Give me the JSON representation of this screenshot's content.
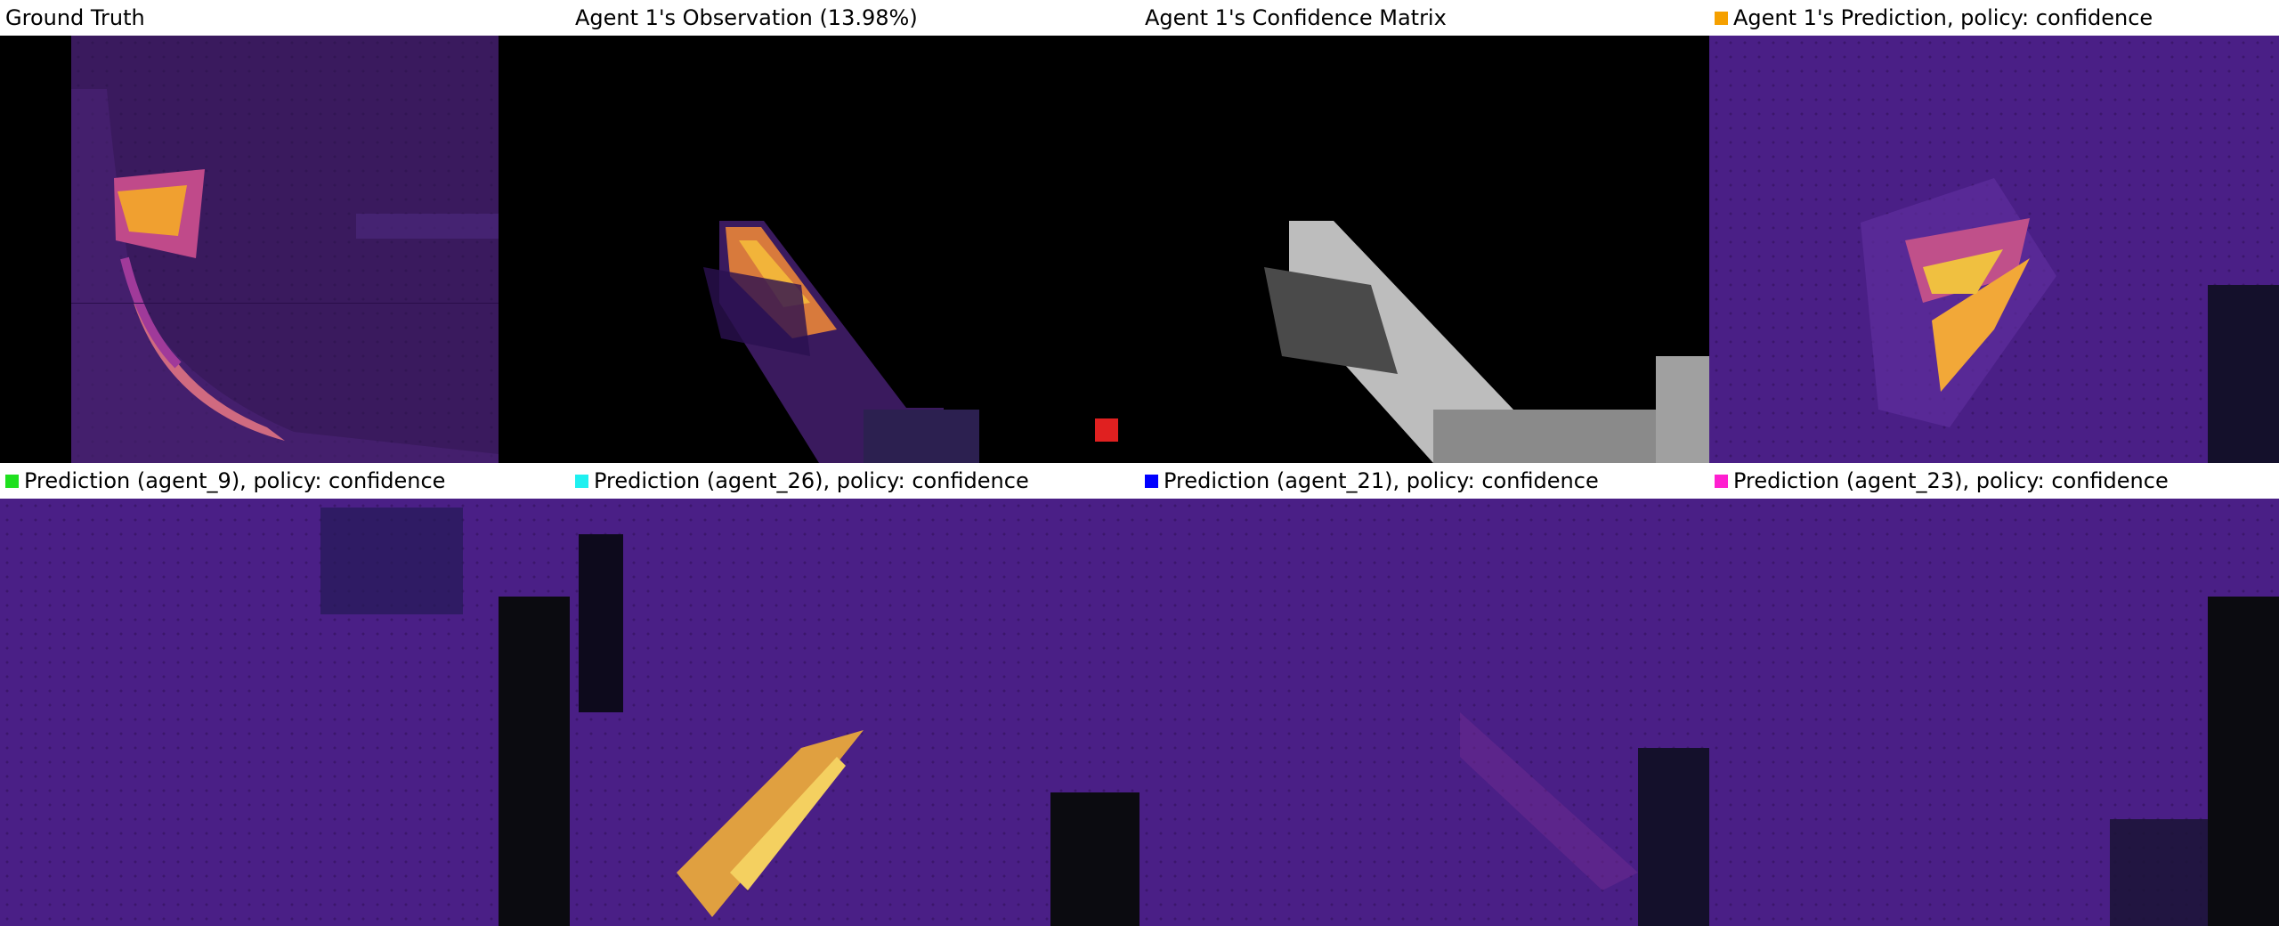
{
  "panels": [
    {
      "title": "Ground Truth",
      "marker_color": null
    },
    {
      "title": "Agent 1's Observation (13.98%)",
      "marker_color": null
    },
    {
      "title": "Agent 1's Confidence Matrix",
      "marker_color": null
    },
    {
      "title": "Agent 1's Prediction, policy: confidence",
      "marker_color": "#f5a000"
    },
    {
      "title": "Prediction (agent_9), policy: confidence",
      "marker_color": "#1fe01f"
    },
    {
      "title": "Prediction (agent_26), policy: confidence",
      "marker_color": "#1ff0f0"
    },
    {
      "title": "Prediction (agent_21), policy: confidence",
      "marker_color": "#0000ff"
    },
    {
      "title": "Prediction (agent_23), policy: confidence",
      "marker_color": "#ff1fd0"
    }
  ]
}
